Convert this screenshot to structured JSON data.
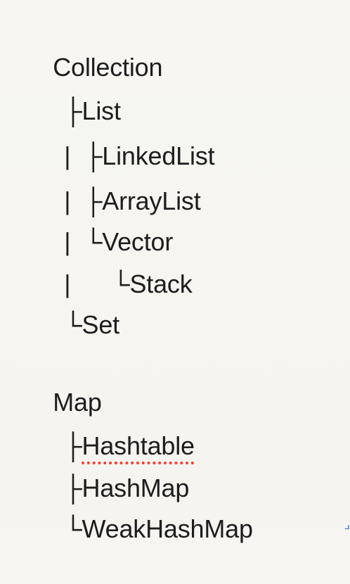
{
  "tree": {
    "collection_root": "Collection",
    "list_branch": "├List",
    "linkedlist_branch": "|  ├LinkedList",
    "arraylist_branch": "|  ├ArrayList",
    "vector_branch": "|  └Vector",
    "stack_branch": "|      └Stack",
    "set_branch": "└Set",
    "map_root": "Map",
    "hashtable_prefix": "├",
    "hashtable_label": "Hashtable",
    "hashmap_branch": "├HashMap",
    "weakhashmap_branch": "└WeakHashMap"
  },
  "colors": {
    "background": "#f6f5f1",
    "text": "#1d1d1f",
    "spellcheck": "#ff3b30"
  }
}
